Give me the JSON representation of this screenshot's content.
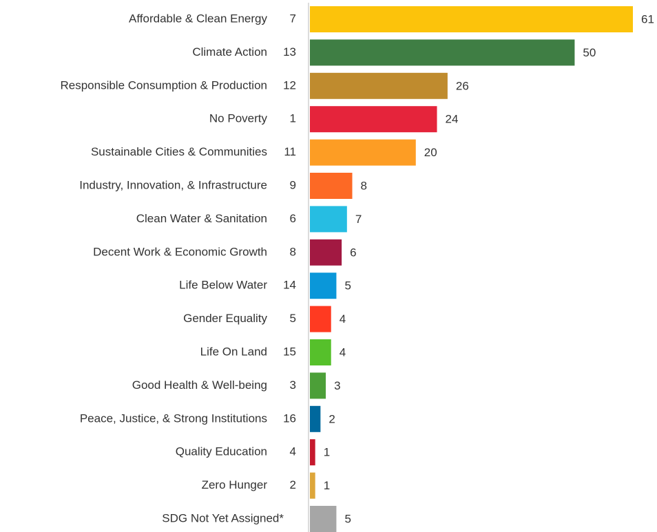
{
  "chart_data": {
    "type": "barh",
    "categories": [
      "Affordable & Clean Energy",
      "Climate Action",
      "Responsible Consumption & Production",
      "No Poverty",
      "Sustainable Cities & Communities",
      "Industry, Innovation, & Infrastructure",
      "Clean Water & Sanitation",
      "Decent Work & Economic Growth",
      "Life Below Water",
      "Gender Equality",
      "Life On Land",
      "Good Health & Well-being",
      "Peace, Justice, & Strong Institutions",
      "Quality Education",
      "Zero Hunger",
      "SDG Not Yet Assigned*"
    ],
    "goal_numbers": [
      7,
      13,
      12,
      1,
      11,
      9,
      6,
      8,
      14,
      5,
      15,
      3,
      16,
      4,
      2,
      null
    ],
    "values": [
      61,
      50,
      26,
      24,
      20,
      8,
      7,
      6,
      5,
      4,
      4,
      3,
      2,
      1,
      1,
      5
    ],
    "colors": [
      "#fcc30b",
      "#3f7e44",
      "#bf8b2e",
      "#e5243b",
      "#fd9d24",
      "#fd6925",
      "#26bde2",
      "#a21942",
      "#0a97d9",
      "#ff3a21",
      "#56c02b",
      "#4c9f38",
      "#00689d",
      "#c5192d",
      "#dda63a",
      "#a6a6a6"
    ]
  }
}
